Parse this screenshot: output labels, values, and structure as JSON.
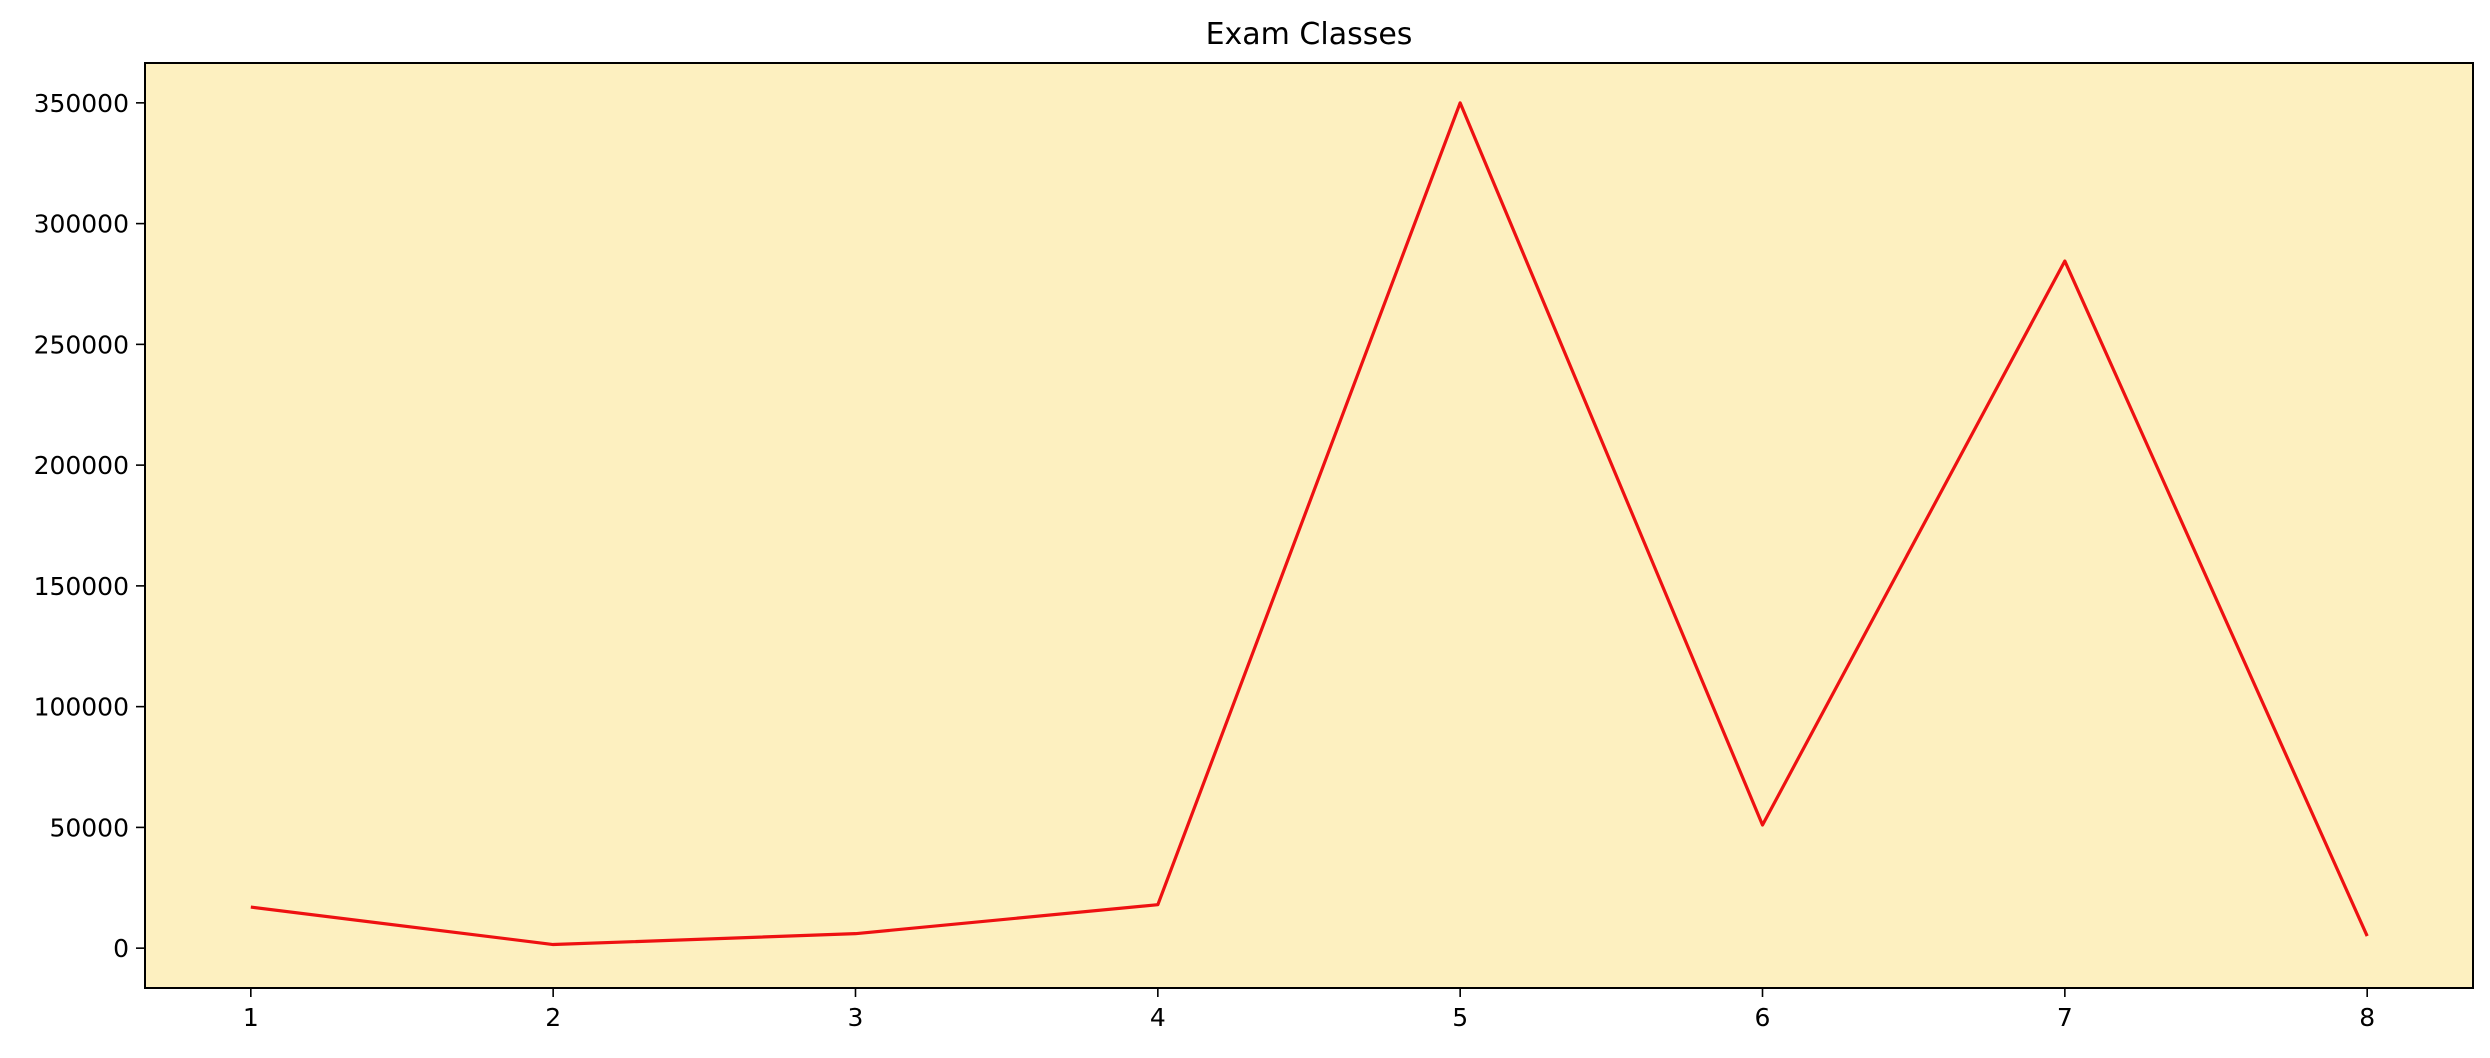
{
  "chart_data": {
    "type": "line",
    "title": "Exam Classes",
    "xlabel": "",
    "ylabel": "",
    "x": [
      1,
      2,
      3,
      4,
      5,
      6,
      7,
      8
    ],
    "xticks": [
      1,
      2,
      3,
      4,
      5,
      6,
      7,
      8
    ],
    "xlim": [
      0.65,
      8.35
    ],
    "yticks": [
      0,
      50000,
      100000,
      150000,
      200000,
      250000,
      300000,
      350000
    ],
    "ylim": [
      -16500,
      366500
    ],
    "grid": false,
    "legend": "none",
    "series": [
      {
        "values": [
          17000,
          1500,
          6000,
          18000,
          350000,
          51000,
          284500,
          5000
        ],
        "color": "#ee1111"
      }
    ],
    "plot_background": "#fdf0c0",
    "frame_color": "#000000"
  }
}
